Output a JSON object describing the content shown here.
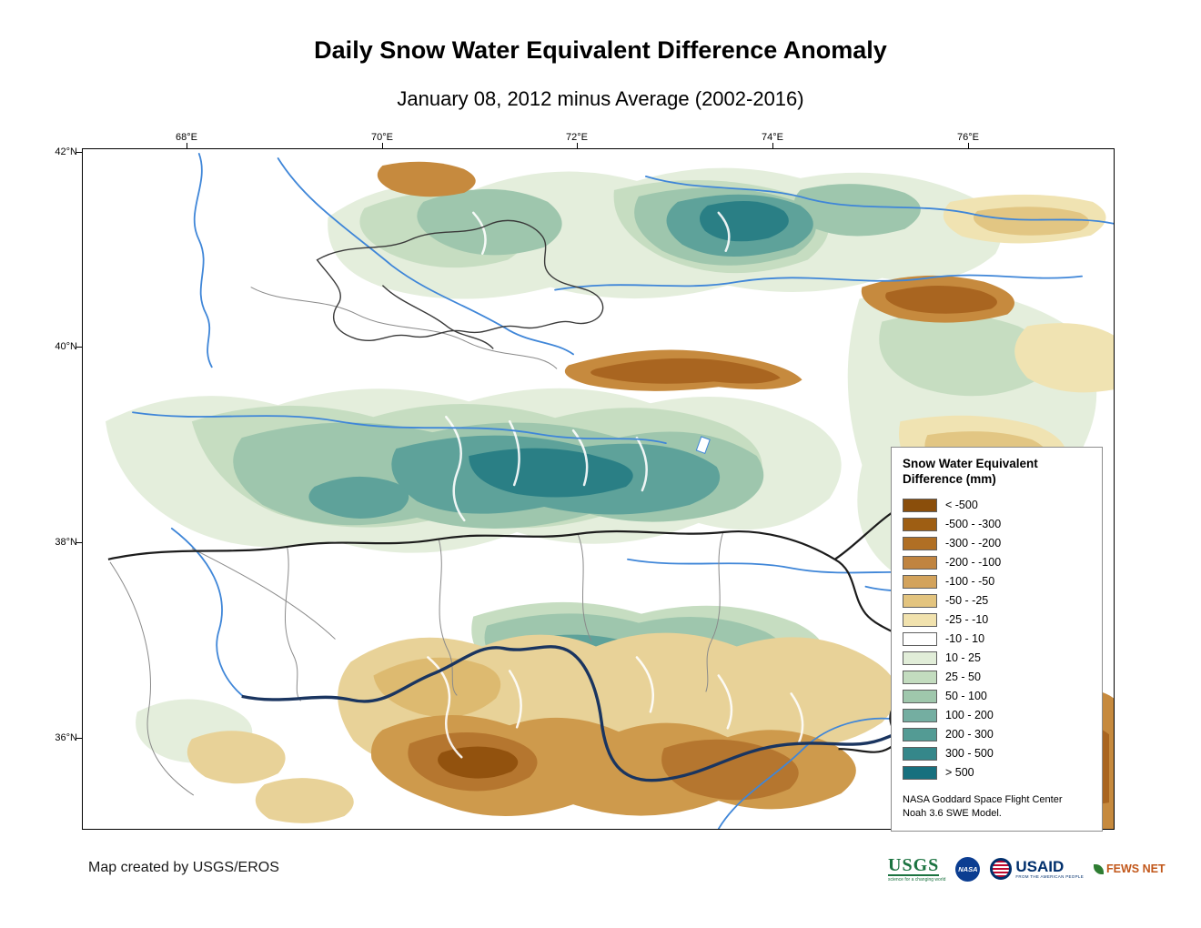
{
  "title": "Daily Snow Water Equivalent Difference Anomaly",
  "subtitle": "January 08, 2012 minus Average (2002-2016)",
  "map": {
    "x_ticks": [
      "68°E",
      "70°E",
      "72°E",
      "74°E",
      "76°E"
    ],
    "y_ticks": [
      "42°N",
      "40°N",
      "38°N",
      "36°N"
    ]
  },
  "legend": {
    "title_line1": "Snow Water Equivalent",
    "title_line2": "Difference (mm)",
    "entries": [
      {
        "label": "< -500",
        "color": "#8A4E0B"
      },
      {
        "label": "-500 - -300",
        "color": "#9E5E13"
      },
      {
        "label": "-300 - -200",
        "color": "#B06F24"
      },
      {
        "label": "-200 - -100",
        "color": "#C08440"
      },
      {
        "label": "-100 - -50",
        "color": "#D3A35C"
      },
      {
        "label": "-50 - -25",
        "color": "#E3C47F"
      },
      {
        "label": "-25 - -10",
        "color": "#F1E2AE"
      },
      {
        "label": "-10 - 10",
        "color": "#FFFFFF"
      },
      {
        "label": "10 - 25",
        "color": "#E1EDD8"
      },
      {
        "label": "25 - 50",
        "color": "#C3DCBF"
      },
      {
        "label": "50 - 100",
        "color": "#9FC7AC"
      },
      {
        "label": "100 - 200",
        "color": "#74AEA1"
      },
      {
        "label": "200 - 300",
        "color": "#539B94"
      },
      {
        "label": "300 - 500",
        "color": "#35878A"
      },
      {
        "label": "> 500",
        "color": "#17707E"
      }
    ],
    "note_line1": "NASA Goddard Space Flight Center",
    "note_line2": "Noah 3.6 SWE Model."
  },
  "footer": {
    "credit": "Map created by USGS/EROS"
  },
  "logos": {
    "usgs": {
      "text": "USGS",
      "tagline": "science for a changing world"
    },
    "nasa": {
      "text": "NASA"
    },
    "usaid": {
      "text": "USAID",
      "tagline": "FROM THE AMERICAN PEOPLE"
    },
    "fewsnet": {
      "text": "FEWS NET"
    }
  }
}
